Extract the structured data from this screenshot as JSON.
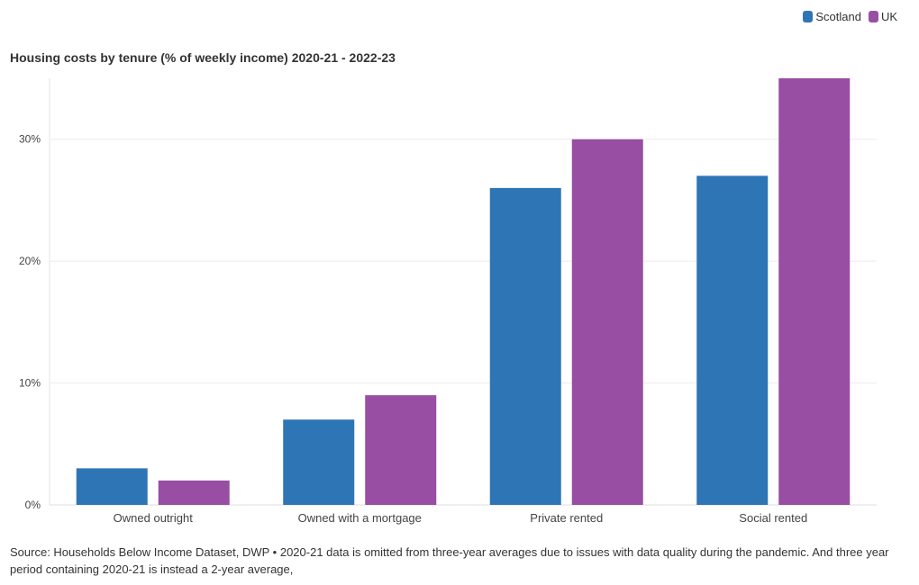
{
  "legend": {
    "items": [
      {
        "label": "Scotland",
        "color": "#2e75b6"
      },
      {
        "label": "UK",
        "color": "#984ea3"
      }
    ]
  },
  "chart_data": {
    "type": "bar",
    "title": "Housing costs by tenure (% of weekly income) 2020-21 - 2022-23",
    "categories": [
      "Owned outright",
      "Owned with a mortgage",
      "Private rented",
      "Social rented"
    ],
    "series": [
      {
        "name": "Scotland",
        "color": "#2e75b6",
        "values": [
          3,
          7,
          26,
          27
        ]
      },
      {
        "name": "UK",
        "color": "#984ea3",
        "values": [
          2,
          9,
          30,
          35
        ]
      }
    ],
    "yticks": [
      "0%",
      "10%",
      "20%",
      "30%"
    ],
    "ytick_values": [
      0,
      10,
      20,
      30
    ],
    "ylim": [
      0,
      35
    ],
    "grid": true,
    "legend_position": "top-right"
  },
  "source": "Source: Households Below Income Dataset, DWP • 2020-21 data is omitted from three-year averages due to issues with data quality during the pandemic. And three year period containing 2020-21 is instead a 2-year average,"
}
